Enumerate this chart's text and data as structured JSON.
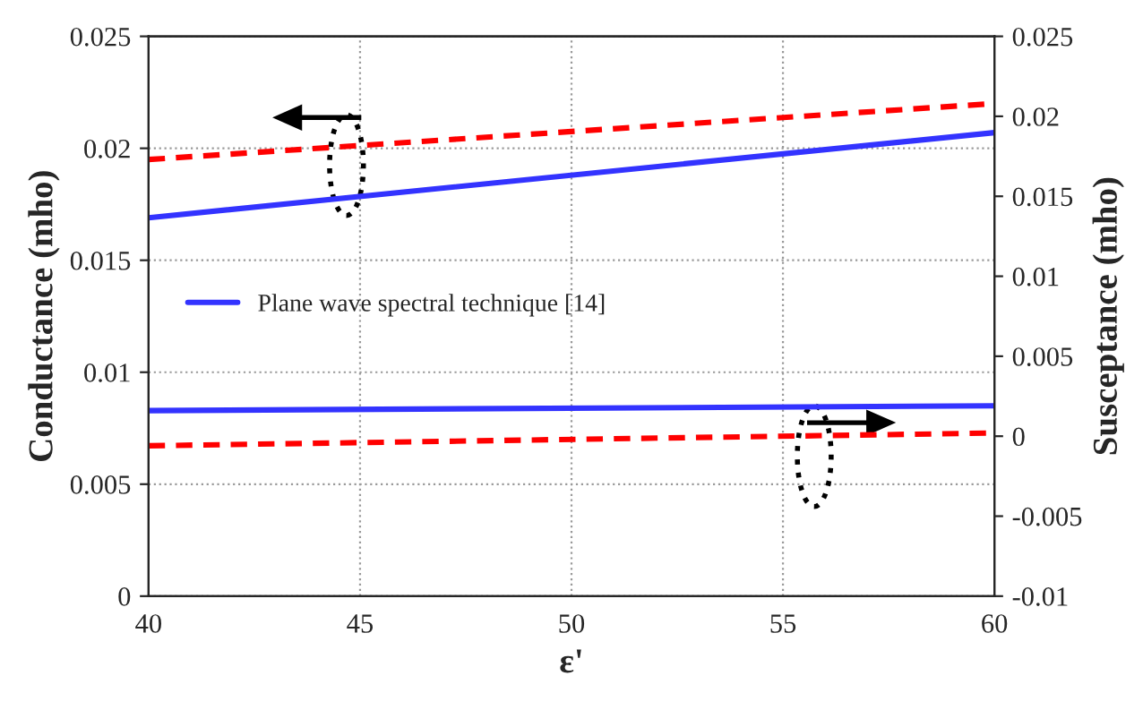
{
  "chart_data": {
    "type": "line",
    "xlabel": "ε'",
    "ylabel": "Conductance (mho)",
    "y2label": "Susceptance (mho)",
    "x": [
      40,
      60
    ],
    "series": [
      {
        "name": "Plane wave spectral technique [14]",
        "color": "#3333ff",
        "values": [
          0.0169,
          0.0207
        ],
        "line_style": "solid"
      },
      {
        "color": "#ff0000",
        "values": [
          0.0195,
          0.022
        ],
        "line_style": "dashed"
      },
      {
        "color": "#3333ff",
        "values": [
          0.0016,
          0.0019
        ],
        "line_style": "solid",
        "axis": "y2"
      },
      {
        "color": "#ff0000",
        "values": [
          -0.0006,
          0.0002
        ],
        "line_style": "dashed",
        "axis": "y2"
      }
    ],
    "xlim": [
      40,
      60
    ],
    "xticks": [
      40,
      45,
      50,
      55,
      60
    ],
    "ylim": [
      0,
      0.025
    ],
    "yticks": [
      0,
      0.005,
      0.01,
      0.015,
      0.02,
      0.025
    ],
    "y2lim": [
      -0.01,
      0.025
    ],
    "y2ticks": [
      -0.01,
      -0.005,
      0,
      0.005,
      0.01,
      0.015,
      0.02,
      0.025
    ],
    "grid": true,
    "legend": "center left",
    "marker": "none"
  }
}
